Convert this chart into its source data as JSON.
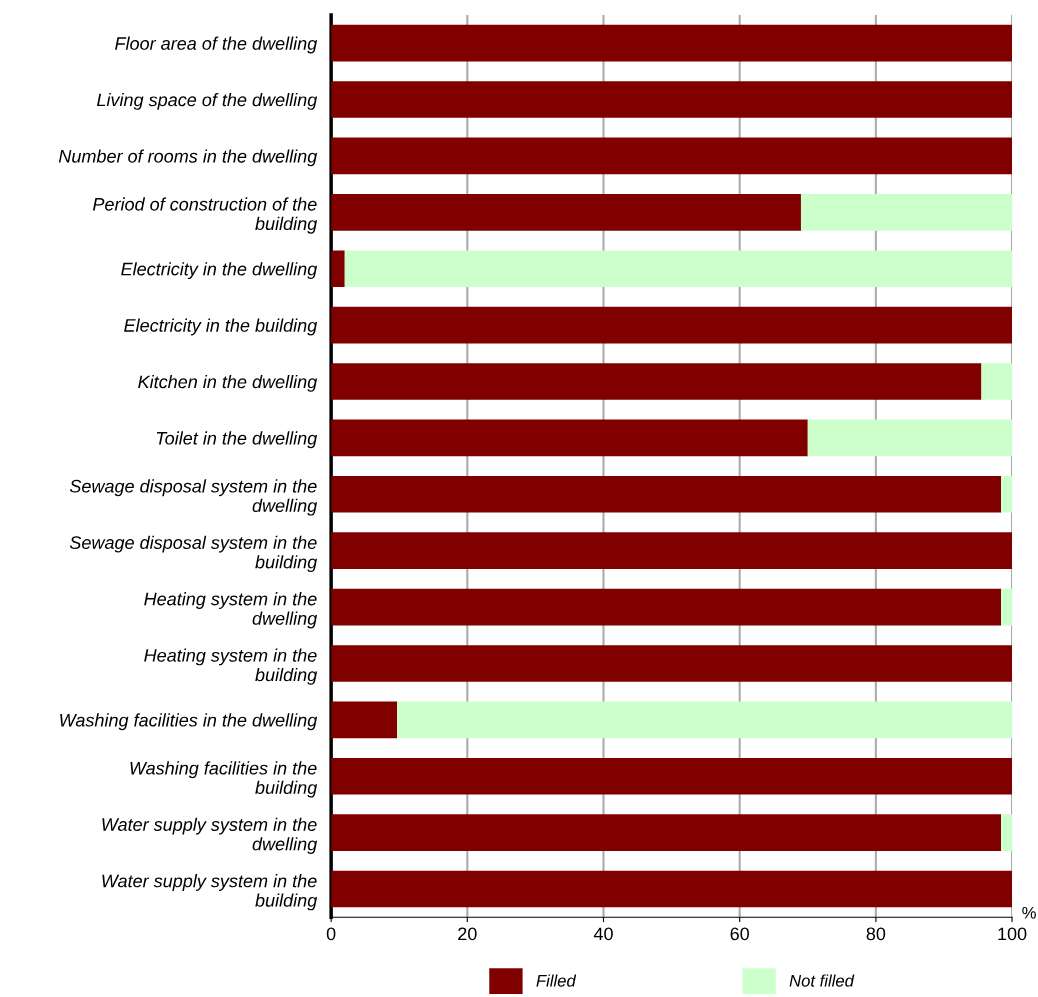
{
  "chart_data": {
    "type": "bar",
    "orientation": "horizontal",
    "stacked": true,
    "categories": [
      "Floor area of the dwelling",
      "Living space of the dwelling",
      "Number of rooms in the dwelling",
      "Period of construction of the\nbuilding",
      "Electricity in the dwelling",
      "Electricity in the building",
      "Kitchen in the dwelling",
      "Toilet in the dwelling",
      "Sewage disposal system in the\ndwelling",
      "Sewage disposal system in the\nbuilding",
      "Heating system in the\ndwelling",
      "Heating system in the\nbuilding",
      "Washing facilities in the dwelling",
      "Washing facilities in the\nbuilding",
      "Water supply system in the\ndwelling",
      "Water supply system in the\nbuilding"
    ],
    "series": [
      {
        "name": "Filled",
        "color": "#800000",
        "values": [
          100,
          100,
          100,
          69,
          2,
          100,
          95.5,
          70,
          98.4,
          100,
          98.4,
          100,
          9.7,
          100,
          98.4,
          100
        ]
      },
      {
        "name": "Not filled",
        "color": "#ccffcc",
        "values": [
          0,
          0,
          0,
          31,
          98,
          0,
          4.5,
          30,
          1.6,
          0,
          1.6,
          0,
          90.3,
          0,
          1.6,
          0
        ]
      }
    ],
    "xlabel": "%",
    "xlim": [
      0,
      100
    ],
    "xticks": [
      0,
      20,
      40,
      60,
      80,
      100
    ],
    "grid": "x",
    "legend": "bottom"
  }
}
